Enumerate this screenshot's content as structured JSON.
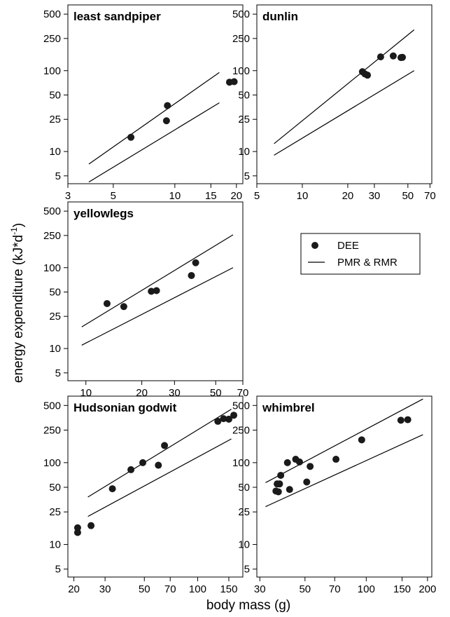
{
  "figure": {
    "ylabel_main": "energy expenditure (kJ*d",
    "ylabel_exp": "-1",
    "ylabel_close": ")",
    "xlabel": "body mass (g)",
    "legend": {
      "dee": "DEE",
      "line": "PMR & RMR"
    }
  },
  "chart_data": [
    {
      "type": "scatter",
      "title": "least sandpiper",
      "xscale": "log",
      "yscale": "log",
      "xlim": [
        3,
        21.5
      ],
      "ylim": [
        4,
        650
      ],
      "xticks": [
        3,
        5,
        10,
        15,
        20
      ],
      "yticks": [
        5,
        10,
        25,
        50,
        100,
        250,
        500
      ],
      "points": [
        [
          6.1,
          15
        ],
        [
          9.1,
          24
        ],
        [
          9.2,
          37
        ],
        [
          18.5,
          72
        ],
        [
          19.5,
          73
        ]
      ],
      "lines": [
        {
          "name": "PMR",
          "x": [
            3.8,
            16.5
          ],
          "y": [
            7,
            95
          ]
        },
        {
          "name": "RMR",
          "x": [
            3.8,
            16.5
          ],
          "y": [
            4.2,
            40
          ]
        }
      ]
    },
    {
      "type": "scatter",
      "title": "dunlin",
      "xscale": "log",
      "yscale": "log",
      "xlim": [
        5,
        72
      ],
      "ylim": [
        4,
        650
      ],
      "xticks": [
        5,
        10,
        20,
        30,
        50,
        70
      ],
      "yticks": [
        5,
        10,
        25,
        50,
        100,
        250,
        500
      ],
      "points": [
        [
          25,
          97
        ],
        [
          26,
          91
        ],
        [
          27,
          88
        ],
        [
          33,
          148
        ],
        [
          40,
          152
        ],
        [
          45,
          145
        ],
        [
          46,
          146
        ]
      ],
      "lines": [
        {
          "name": "PMR",
          "x": [
            6.5,
            55
          ],
          "y": [
            12.5,
            320
          ]
        },
        {
          "name": "RMR",
          "x": [
            6.5,
            55
          ],
          "y": [
            9,
            100
          ]
        }
      ]
    },
    {
      "type": "scatter",
      "title": "yellowlegs",
      "xscale": "log",
      "yscale": "log",
      "xlim": [
        8,
        70
      ],
      "ylim": [
        4,
        650
      ],
      "xticks": [
        10,
        20,
        30,
        50,
        70
      ],
      "yticks": [
        5,
        10,
        25,
        50,
        100,
        250,
        500
      ],
      "points": [
        [
          13,
          36
        ],
        [
          16,
          33
        ],
        [
          22.5,
          51
        ],
        [
          24,
          52
        ],
        [
          37,
          80
        ],
        [
          39,
          115
        ]
      ],
      "lines": [
        {
          "name": "PMR",
          "x": [
            9.5,
            62
          ],
          "y": [
            18.5,
            255
          ]
        },
        {
          "name": "RMR",
          "x": [
            9.5,
            62
          ],
          "y": [
            11,
            100
          ]
        }
      ]
    },
    {
      "type": "scatter",
      "title": "Hudsonian godwit",
      "xscale": "log",
      "yscale": "log",
      "xlim": [
        18.5,
        180
      ],
      "ylim": [
        4,
        650
      ],
      "xticks": [
        20,
        30,
        50,
        70,
        100,
        150
      ],
      "yticks": [
        5,
        10,
        25,
        50,
        100,
        250,
        500
      ],
      "points": [
        [
          21,
          16
        ],
        [
          21,
          14
        ],
        [
          25,
          17
        ],
        [
          33,
          48
        ],
        [
          42,
          82
        ],
        [
          49,
          100
        ],
        [
          60,
          93
        ],
        [
          65,
          162
        ],
        [
          130,
          320
        ],
        [
          140,
          345
        ],
        [
          150,
          340
        ],
        [
          160,
          380
        ]
      ],
      "lines": [
        {
          "name": "PMR",
          "x": [
            24,
            155
          ],
          "y": [
            38,
            450
          ]
        },
        {
          "name": "RMR",
          "x": [
            24,
            155
          ],
          "y": [
            22,
            195
          ]
        }
      ]
    },
    {
      "type": "scatter",
      "title": "whimbrel",
      "xscale": "log",
      "yscale": "log",
      "xlim": [
        29,
        210
      ],
      "ylim": [
        4,
        650
      ],
      "xticks": [
        30,
        50,
        70,
        100,
        150,
        200
      ],
      "yticks": [
        5,
        10,
        25,
        50,
        100,
        250,
        500
      ],
      "points": [
        [
          36,
          45
        ],
        [
          37,
          44
        ],
        [
          36.5,
          55
        ],
        [
          37.5,
          55
        ],
        [
          38,
          70
        ],
        [
          41,
          100
        ],
        [
          42,
          47
        ],
        [
          45,
          110
        ],
        [
          47,
          102
        ],
        [
          51,
          58
        ],
        [
          53,
          90
        ],
        [
          71,
          110
        ],
        [
          95,
          190
        ],
        [
          148,
          330
        ],
        [
          160,
          335
        ]
      ],
      "lines": [
        {
          "name": "PMR",
          "x": [
            32,
            190
          ],
          "y": [
            57,
            600
          ]
        },
        {
          "name": "RMR",
          "x": [
            32,
            190
          ],
          "y": [
            29,
            220
          ]
        }
      ]
    }
  ]
}
